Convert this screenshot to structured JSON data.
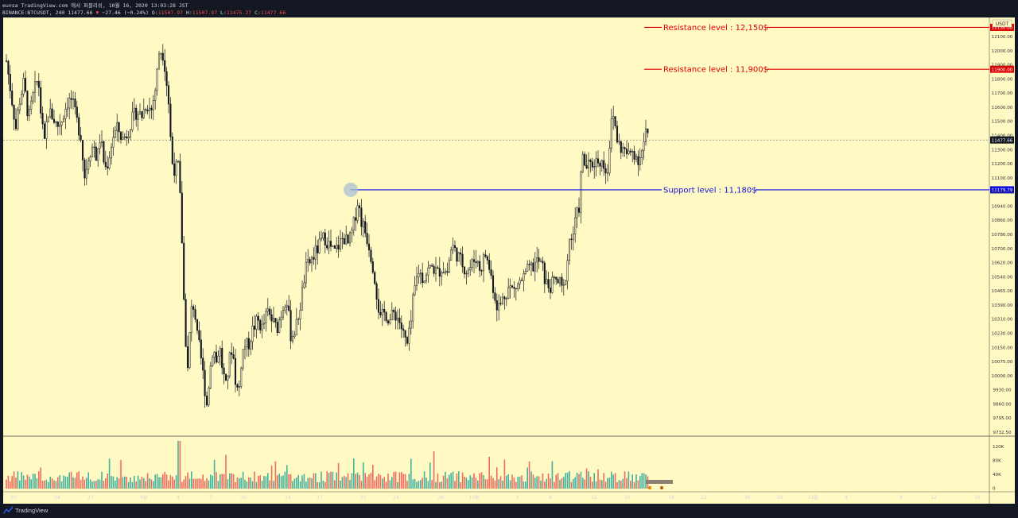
{
  "header": {
    "line1": "eunsa TradingView.com 에서 퍼블리쉬, 10월 16, 2020 13:03:28 JST",
    "symbol": "BINANCE:BTCUSDT, 240",
    "last": "11477.66",
    "change": "−27.46 (−0.24%)",
    "o_label": "O:",
    "o_value": "11507.97",
    "h_label": "H:",
    "h_value": "11507.97",
    "l_label": "L:",
    "l_value": "11475.27",
    "c_label": "C:",
    "c_value": "11477.66"
  },
  "footer": {
    "brand": "TradingView"
  },
  "colors": {
    "background": "#fff9c4",
    "frame": "#131722",
    "candle": "#131722",
    "resistance": "#e00000",
    "support": "#1010e0",
    "volume_up": "#26a69a",
    "volume_down": "#ef5350"
  },
  "chart_data": {
    "type": "candlestick",
    "title": "",
    "currency_label": "USDT",
    "y_ticks": [
      "12100.00",
      "12000.00",
      "11900.00",
      "11800.00",
      "11700.00",
      "11600.00",
      "11500.00",
      "11400.00",
      "11300.00",
      "11200.00",
      "11100.00",
      "11020.00",
      "10940.00",
      "10860.00",
      "10780.00",
      "10700.00",
      "10620.00",
      "10540.00",
      "10465.00",
      "10390.00",
      "10310.00",
      "10230.00",
      "10150.00",
      "10075.00",
      "10000.00",
      "9930.00",
      "9860.00",
      "9795.00",
      "9732.50"
    ],
    "x_ticks": [
      "20",
      "24",
      "27",
      "9월",
      "4",
      "7",
      "10",
      "14",
      "17",
      "21",
      "24",
      "28",
      "10월",
      "5",
      "8",
      "12",
      "15",
      "19",
      "22",
      "26",
      "29",
      "11월",
      "4",
      "9",
      "12",
      "16"
    ],
    "volume_ticks": [
      "120K",
      "80K",
      "40K",
      "0"
    ],
    "last_price": "11477.66",
    "annotations": [
      {
        "text": "Resistance level : 12,150$",
        "price": 12150,
        "marker": "12150.00",
        "color": "#e00000"
      },
      {
        "text": "Resistance level : 11,900$",
        "price": 11900,
        "marker": "11900.00",
        "color": "#e00000"
      },
      {
        "text": "Support level : 11,180$",
        "price": 11180,
        "marker": "11179.79",
        "color": "#1010e0"
      }
    ],
    "path": [
      [
        0,
        11950
      ],
      [
        6,
        11750
      ],
      [
        12,
        11550
      ],
      [
        16,
        11700
      ],
      [
        22,
        11820
      ],
      [
        28,
        11600
      ],
      [
        34,
        11750
      ],
      [
        40,
        11850
      ],
      [
        44,
        11600
      ],
      [
        48,
        11450
      ],
      [
        52,
        11650
      ],
      [
        58,
        11620
      ],
      [
        64,
        11560
      ],
      [
        70,
        11600
      ],
      [
        76,
        11700
      ],
      [
        82,
        11720
      ],
      [
        88,
        11600
      ],
      [
        94,
        11500
      ],
      [
        98,
        11250
      ],
      [
        104,
        11400
      ],
      [
        110,
        11450
      ],
      [
        114,
        11350
      ],
      [
        118,
        11500
      ],
      [
        124,
        11300
      ],
      [
        128,
        11350
      ],
      [
        134,
        11500
      ],
      [
        140,
        11550
      ],
      [
        146,
        11480
      ],
      [
        152,
        11520
      ],
      [
        158,
        11600
      ],
      [
        164,
        11650
      ],
      [
        170,
        11620
      ],
      [
        176,
        11700
      ],
      [
        182,
        11650
      ],
      [
        188,
        11800
      ],
      [
        192,
        12000
      ],
      [
        196,
        12020
      ],
      [
        200,
        11900
      ],
      [
        204,
        11700
      ],
      [
        208,
        11350
      ],
      [
        212,
        11300
      ],
      [
        216,
        11320
      ],
      [
        220,
        11000
      ],
      [
        224,
        10400
      ],
      [
        228,
        10100
      ],
      [
        232,
        10450
      ],
      [
        236,
        10500
      ],
      [
        240,
        10300
      ],
      [
        244,
        10200
      ],
      [
        248,
        10050
      ],
      [
        252,
        9900
      ],
      [
        256,
        10100
      ],
      [
        260,
        10250
      ],
      [
        264,
        10150
      ],
      [
        268,
        10250
      ],
      [
        272,
        10100
      ],
      [
        276,
        10000
      ],
      [
        280,
        10150
      ],
      [
        284,
        10250
      ],
      [
        288,
        10050
      ],
      [
        292,
        9950
      ],
      [
        296,
        10200
      ],
      [
        300,
        10250
      ],
      [
        304,
        10250
      ],
      [
        310,
        10350
      ],
      [
        316,
        10400
      ],
      [
        322,
        10350
      ],
      [
        328,
        10450
      ],
      [
        334,
        10400
      ],
      [
        340,
        10350
      ],
      [
        346,
        10450
      ],
      [
        352,
        10550
      ],
      [
        358,
        10300
      ],
      [
        364,
        10350
      ],
      [
        370,
        10500
      ],
      [
        376,
        10700
      ],
      [
        382,
        10750
      ],
      [
        388,
        10800
      ],
      [
        394,
        10850
      ],
      [
        400,
        10900
      ],
      [
        406,
        10850
      ],
      [
        412,
        10800
      ],
      [
        418,
        10850
      ],
      [
        424,
        10900
      ],
      [
        430,
        10850
      ],
      [
        436,
        10950
      ],
      [
        442,
        11120
      ],
      [
        446,
        11000
      ],
      [
        450,
        10950
      ],
      [
        456,
        10850
      ],
      [
        462,
        10700
      ],
      [
        466,
        10550
      ],
      [
        470,
        10400
      ],
      [
        476,
        10450
      ],
      [
        482,
        10400
      ],
      [
        488,
        10450
      ],
      [
        494,
        10400
      ],
      [
        500,
        10300
      ],
      [
        504,
        10250
      ],
      [
        508,
        10350
      ],
      [
        512,
        10550
      ],
      [
        518,
        10700
      ],
      [
        524,
        10650
      ],
      [
        530,
        10700
      ],
      [
        536,
        10720
      ],
      [
        542,
        10680
      ],
      [
        548,
        10720
      ],
      [
        554,
        10680
      ],
      [
        560,
        10850
      ],
      [
        566,
        10800
      ],
      [
        572,
        10750
      ],
      [
        578,
        10700
      ],
      [
        584,
        10720
      ],
      [
        590,
        10780
      ],
      [
        596,
        10700
      ],
      [
        602,
        10800
      ],
      [
        608,
        10700
      ],
      [
        612,
        10600
      ],
      [
        616,
        10500
      ],
      [
        620,
        10480
      ],
      [
        626,
        10550
      ],
      [
        632,
        10600
      ],
      [
        638,
        10580
      ],
      [
        644,
        10620
      ],
      [
        650,
        10650
      ],
      [
        656,
        10700
      ],
      [
        662,
        10720
      ],
      [
        668,
        10760
      ],
      [
        674,
        10720
      ],
      [
        678,
        10620
      ],
      [
        684,
        10600
      ],
      [
        690,
        10640
      ],
      [
        696,
        10620
      ],
      [
        700,
        10560
      ],
      [
        704,
        10700
      ],
      [
        708,
        10880
      ],
      [
        712,
        10900
      ],
      [
        716,
        11000
      ],
      [
        720,
        11080
      ],
      [
        724,
        11380
      ],
      [
        728,
        11320
      ],
      [
        734,
        11320
      ],
      [
        740,
        11350
      ],
      [
        746,
        11360
      ],
      [
        752,
        11320
      ],
      [
        756,
        11300
      ],
      [
        760,
        11560
      ],
      [
        764,
        11620
      ],
      [
        768,
        11480
      ],
      [
        772,
        11430
      ],
      [
        776,
        11420
      ],
      [
        782,
        11380
      ],
      [
        788,
        11420
      ],
      [
        794,
        11360
      ],
      [
        800,
        11420
      ],
      [
        804,
        11520
      ],
      [
        808,
        11480
      ]
    ]
  }
}
